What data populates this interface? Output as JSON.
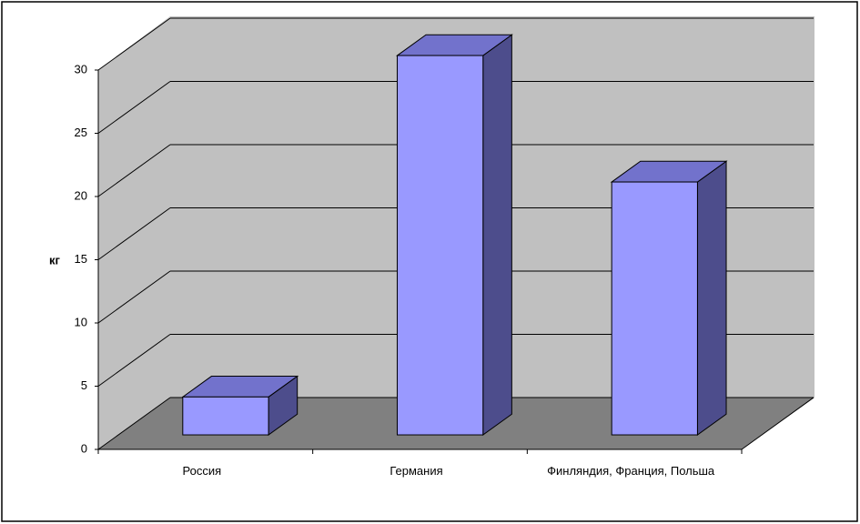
{
  "chart_data": {
    "type": "bar",
    "y_label": "кг",
    "categories": [
      "Россия",
      "Германия",
      "Финляндия, Франция, Польша"
    ],
    "values": [
      3,
      30,
      20
    ],
    "color": "#9999ff",
    "ylim": [
      0,
      30
    ],
    "yticks": [
      0,
      5,
      10,
      15,
      20,
      25,
      30
    ],
    "grid": true
  }
}
